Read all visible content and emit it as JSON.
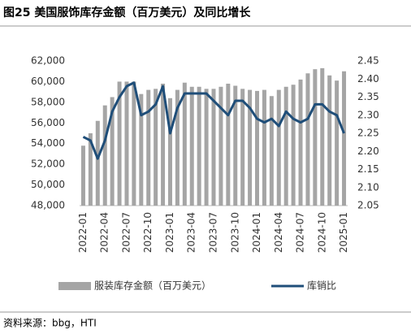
{
  "chart_data": {
    "type": "bar",
    "title": "图25 美国服饰库存金额（百万美元）及同比增长",
    "source": "资料来源：bbg，HTI",
    "categories": [
      "2022-01",
      null,
      null,
      "2022-04",
      null,
      null,
      "2022-07",
      null,
      null,
      "2022-10",
      null,
      null,
      "2023-01",
      null,
      null,
      "2023-04",
      null,
      null,
      "2023-07",
      null,
      null,
      "2023-10",
      null,
      null,
      "2024-01",
      null,
      null,
      "2024-04",
      null,
      null,
      "2024-07",
      null,
      null,
      "2024-10",
      null,
      null,
      "2025-01"
    ],
    "series": [
      {
        "name": "服装库存金额（百万美元）",
        "color": "#a5a5a5",
        "type": "bar",
        "values": [
          53800,
          55000,
          56200,
          57700,
          58500,
          60000,
          60000,
          60000,
          58800,
          59200,
          59300,
          59800,
          58400,
          59200,
          59900,
          59500,
          59500,
          59300,
          59300,
          59500,
          59800,
          59600,
          59300,
          59200,
          59100,
          59200,
          58600,
          59200,
          59500,
          59700,
          60200,
          60800,
          61200,
          61300,
          60600,
          60100,
          61000
        ]
      },
      {
        "name": "库销比",
        "color": "#1f4e79",
        "type": "line",
        "axis": "y2",
        "values": [
          2.24,
          2.23,
          2.18,
          2.23,
          2.31,
          2.35,
          2.38,
          2.39,
          2.3,
          2.31,
          2.33,
          2.38,
          2.25,
          2.32,
          2.36,
          2.36,
          2.36,
          2.36,
          2.34,
          2.32,
          2.3,
          2.34,
          2.34,
          2.32,
          2.29,
          2.28,
          2.29,
          2.27,
          2.31,
          2.29,
          2.28,
          2.29,
          2.33,
          2.33,
          2.31,
          2.3,
          2.25
        ]
      }
    ],
    "ylim": [
      48000,
      62000
    ],
    "yticks": [
      {
        "value": 48000,
        "label": "48,000"
      },
      {
        "value": 50000,
        "label": "50,000"
      },
      {
        "value": 52000,
        "label": "52,000"
      },
      {
        "value": 54000,
        "label": "54,000"
      },
      {
        "value": 56000,
        "label": "56,000"
      },
      {
        "value": 58000,
        "label": "58,000"
      },
      {
        "value": 60000,
        "label": "60,000"
      },
      {
        "value": 62000,
        "label": "62,000"
      }
    ],
    "y2lim": [
      2.05,
      2.45
    ],
    "y2ticks": [
      2.05,
      {
        "value": 2.1,
        "label": "2.10"
      },
      2.15,
      {
        "value": 2.2,
        "label": "2.20"
      },
      2.25,
      {
        "value": 2.3,
        "label": "2.30"
      },
      2.35,
      {
        "value": 2.4,
        "label": "2.40"
      },
      2.45
    ],
    "grid": false
  }
}
